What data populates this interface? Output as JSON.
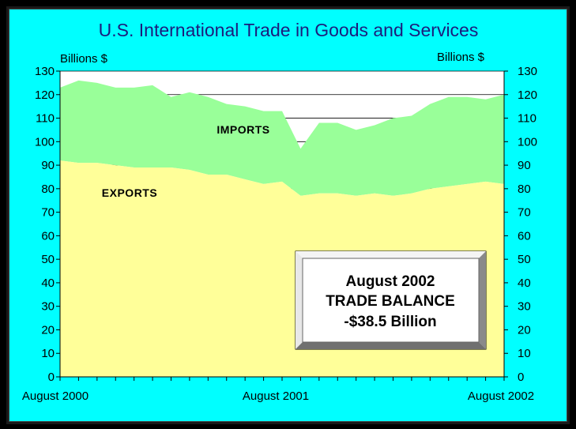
{
  "chart_data": {
    "type": "area",
    "title": "U.S. International Trade in Goods and Services",
    "ylabel_left": "Billions $",
    "ylabel_right": "Billions $",
    "ylim": [
      0,
      130
    ],
    "yticks": [
      0,
      10,
      20,
      30,
      40,
      50,
      60,
      70,
      80,
      90,
      100,
      110,
      120,
      130
    ],
    "x_tick_labels": [
      "August 2000",
      "August 2001",
      "August 2002"
    ],
    "x_tick_index": [
      0,
      12,
      24
    ],
    "grid": true,
    "series": [
      {
        "name": "EXPORTS",
        "color": "#ffff99",
        "values": [
          92,
          91,
          91,
          90,
          89,
          89,
          89,
          88,
          86,
          86,
          84,
          82,
          83,
          77,
          78,
          78,
          77,
          78,
          77,
          78,
          80,
          81,
          82,
          83,
          82
        ]
      },
      {
        "name": "IMPORTS",
        "color": "#99ff99",
        "values": [
          123,
          126,
          125,
          123,
          123,
          124,
          119,
          121,
          119,
          116,
          115,
          113,
          113,
          97,
          108,
          108,
          105,
          107,
          110,
          111,
          116,
          119,
          119,
          118,
          120
        ]
      }
    ],
    "annotation": {
      "lines": [
        "August 2002",
        "TRADE BALANCE",
        "-$38.5 Billion"
      ]
    }
  },
  "colors": {
    "background": "#00ffff",
    "plot_bg": "#ffffff",
    "exports": "#ffff99",
    "imports": "#99ff99",
    "title": "#1c1c7c"
  }
}
